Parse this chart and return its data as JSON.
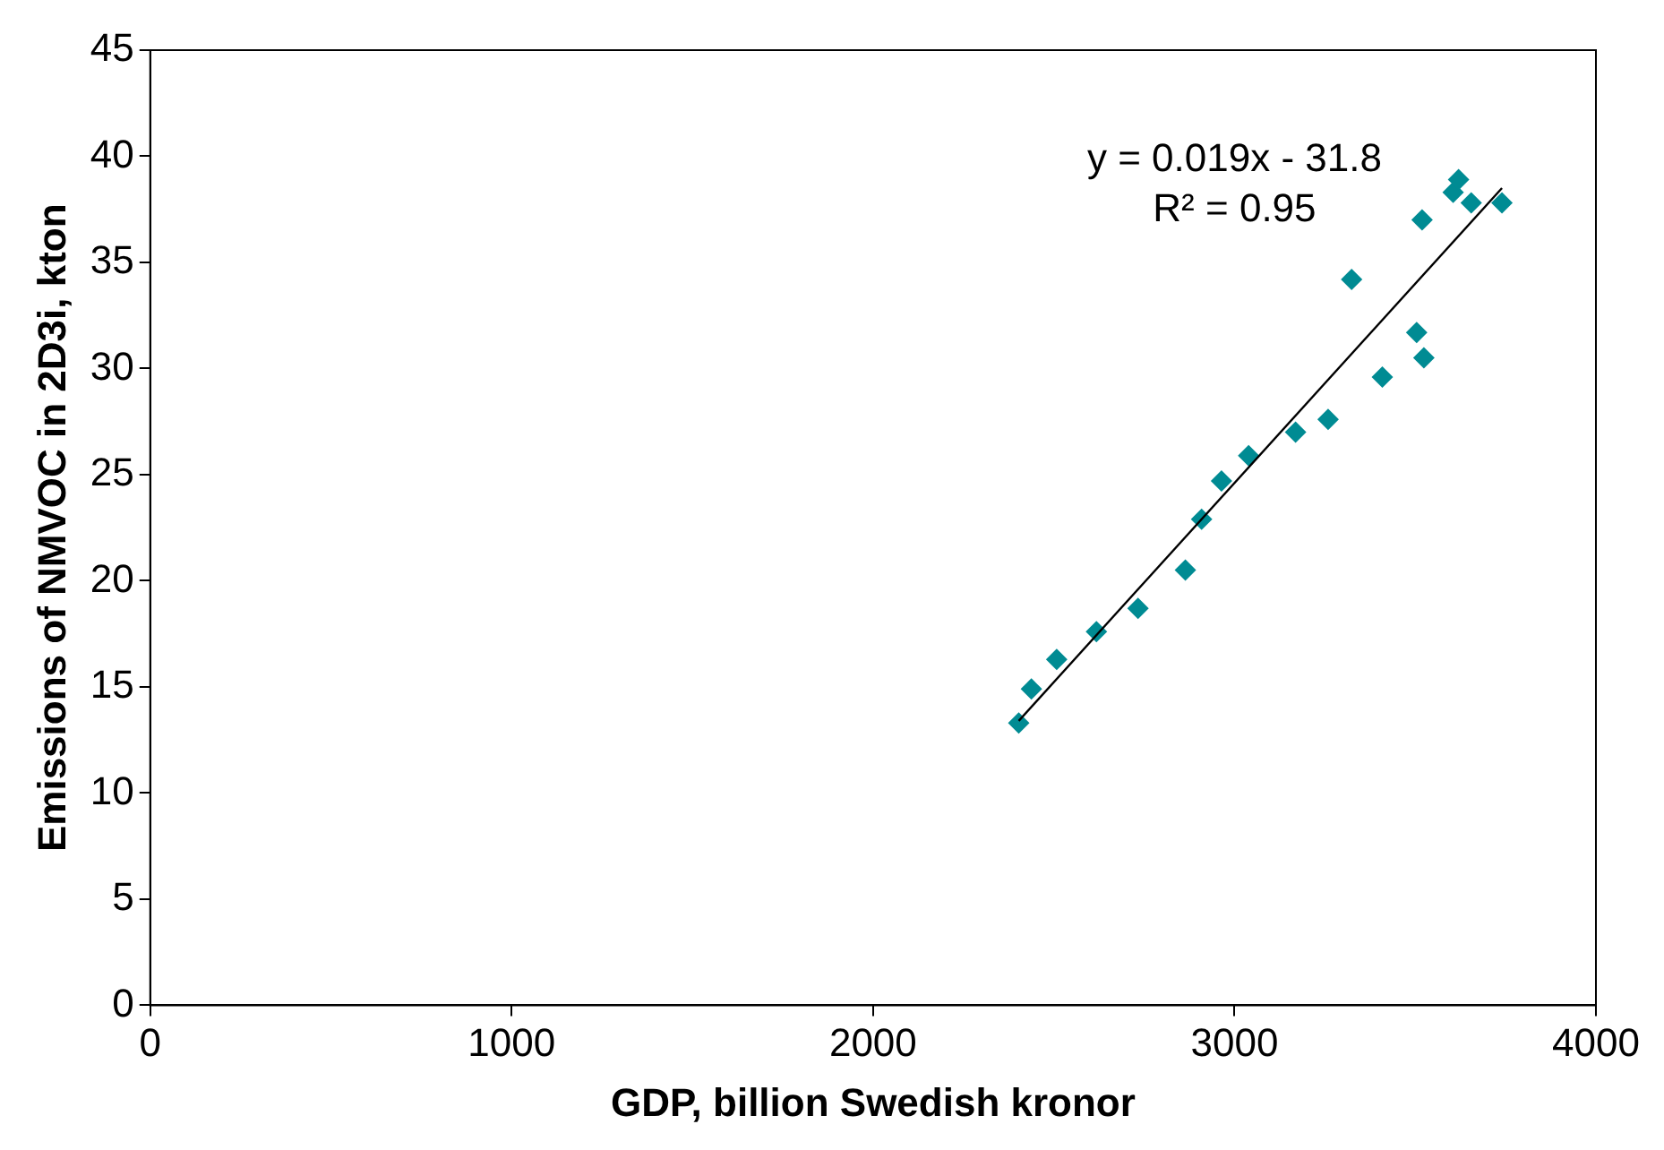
{
  "chart_data": {
    "type": "scatter",
    "xlabel": "GDP, billion Swedish kronor",
    "ylabel": "Emissions of NMVOC in 2D3i, kton",
    "xlim": [
      0,
      4000
    ],
    "xticks": [
      0,
      1000,
      2000,
      3000,
      4000
    ],
    "ylim": [
      0,
      45
    ],
    "yticks": [
      0,
      5,
      10,
      15,
      20,
      25,
      30,
      35,
      40,
      45
    ],
    "grid": false,
    "legend": false,
    "series": [
      {
        "color": "#008b93",
        "marker": "diamond",
        "x": [
          2403,
          2438,
          2508,
          2618,
          2733,
          2864,
          2909,
          2964,
          3039,
          3169,
          3259,
          3324,
          3409,
          3504,
          3524,
          3519,
          3605,
          3620,
          3655,
          3740
        ],
        "values": [
          13.3,
          14.9,
          16.3,
          17.6,
          18.7,
          20.5,
          22.9,
          24.7,
          25.9,
          27.0,
          27.6,
          34.2,
          29.6,
          31.7,
          30.5,
          37.0,
          38.3,
          38.9,
          37.8,
          37.8
        ]
      },
      {
        "type": "line",
        "color": "#000000",
        "marker": "none",
        "line_style": "solid",
        "x": [
          2403,
          3740
        ],
        "values": [
          13.4,
          38.5
        ]
      }
    ],
    "annotations": [
      "y = 0.019x - 31.8",
      "R² = 0.95"
    ]
  }
}
